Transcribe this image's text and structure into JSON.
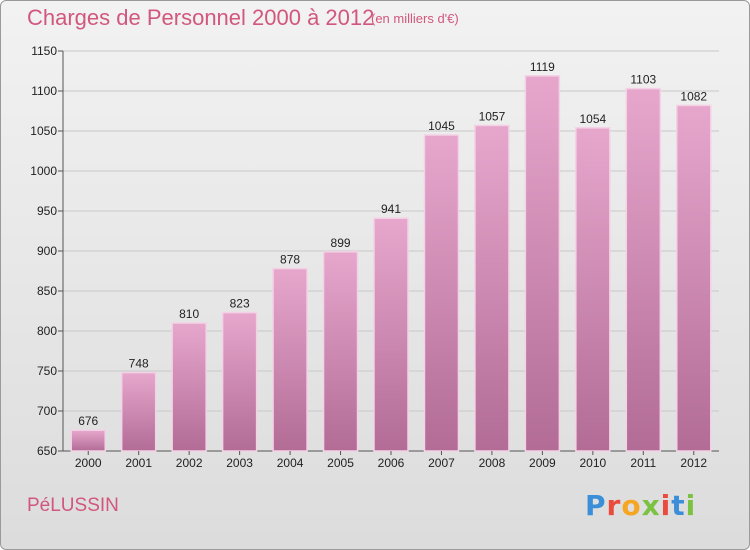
{
  "header": {
    "title": "Charges de Personnel 2000 à 2012",
    "subtitle": "(en milliers d'€)"
  },
  "footer": {
    "city": "PéLUSSIN",
    "logo_text": "Proxiti",
    "logo_colors": [
      "#3a8fd8",
      "#e94b3c",
      "#f5a623",
      "#7cc242",
      "#e94b3c",
      "#3a8fd8",
      "#7cc242"
    ]
  },
  "colors": {
    "bar_top": "#e7a7cd",
    "bar_bottom": "#b26c96",
    "grid": "#c8c8c8",
    "accent": "#d2577e"
  },
  "chart_data": {
    "type": "bar",
    "title": "Charges de Personnel 2000 à 2012",
    "subtitle": "(en milliers d'€)",
    "categories": [
      "2000",
      "2001",
      "2002",
      "2003",
      "2004",
      "2005",
      "2006",
      "2007",
      "2008",
      "2009",
      "2010",
      "2011",
      "2012"
    ],
    "values": [
      676,
      748,
      810,
      823,
      878,
      899,
      941,
      1045,
      1057,
      1119,
      1054,
      1103,
      1082
    ],
    "ylim": [
      650,
      1150
    ],
    "yticks": [
      650,
      700,
      750,
      800,
      850,
      900,
      950,
      1000,
      1050,
      1100,
      1150
    ],
    "grid": true,
    "data_labels": true
  }
}
